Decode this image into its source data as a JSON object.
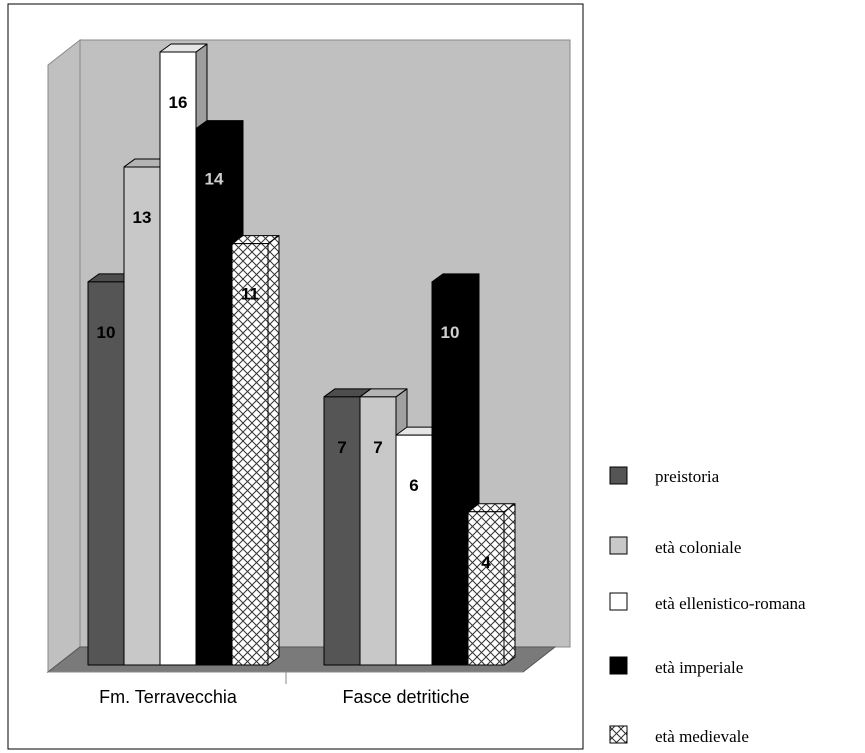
{
  "chart_data": {
    "type": "bar",
    "categories": [
      "Fm. Terravecchia",
      "Fasce detritiche"
    ],
    "series": [
      {
        "name": "preistoria",
        "values": [
          10,
          7
        ],
        "color": "#555555",
        "pattern": "solid"
      },
      {
        "name": "età coloniale",
        "values": [
          13,
          7
        ],
        "color": "#c8c8c8",
        "pattern": "solid"
      },
      {
        "name": "età ellenistico-romana",
        "values": [
          16,
          6
        ],
        "color": "#ffffff",
        "pattern": "solid"
      },
      {
        "name": "età imperiale",
        "values": [
          14,
          10
        ],
        "color": "#000000",
        "pattern": "solid"
      },
      {
        "name": "età medievale",
        "values": [
          11,
          4
        ],
        "color": "#ffffff",
        "pattern": "crosshatch"
      }
    ],
    "ylim": [
      0,
      16
    ],
    "grid": false,
    "data_labels": true,
    "legend_position": "right",
    "style": "3d",
    "background_color": "#c0c0c0"
  }
}
